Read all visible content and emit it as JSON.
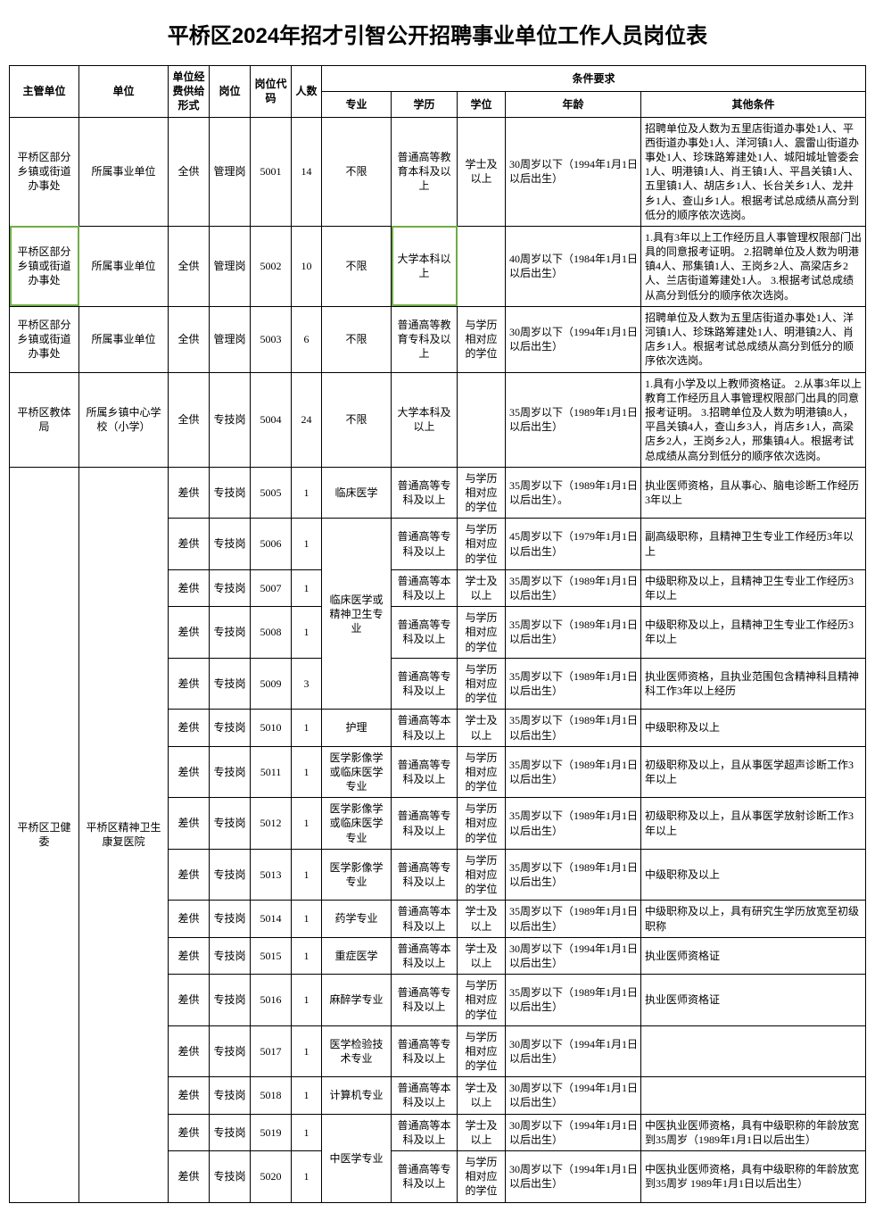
{
  "title": "平桥区2024年招才引智公开招聘事业单位工作人员岗位表",
  "headers": {
    "authority": "主管单位",
    "unit": "单位",
    "funding": "单位经费供给形式",
    "post": "岗位",
    "code": "岗位代码",
    "count": "人数",
    "conditions": "条件要求",
    "major": "专业",
    "education": "学历",
    "degree": "学位",
    "age": "年龄",
    "other": "其他条件"
  },
  "rows": [
    {
      "authority": "平桥区部分乡镇或街道办事处",
      "unit": "所属事业单位",
      "funding": "全供",
      "post": "管理岗",
      "code": "5001",
      "count": "14",
      "major": "不限",
      "education": "普通高等教育本科及以上",
      "degree": "学士及以上",
      "age": "30周岁以下（1994年1月1日以后出生）",
      "other": "招聘单位及人数为五里店街道办事处1人、平西街道办事处1人、洋河镇1人、震雷山街道办事处1人、珍珠路筹建处1人、城阳城址管委会1人、明港镇1人、肖王镇1人、平昌关镇1人、五里镇1人、胡店乡1人、长台关乡1人、龙井乡1人、查山乡1人。根据考试总成绩从高分到低分的顺序依次选岗。"
    },
    {
      "authority": "平桥区部分乡镇或街道办事处",
      "unit": "所属事业单位",
      "funding": "全供",
      "post": "管理岗",
      "code": "5002",
      "count": "10",
      "major": "不限",
      "education": "大学本科以上",
      "degree": "",
      "age": "40周岁以下（1984年1月1日以后出生）",
      "other": "1.具有3年以上工作经历且人事管理权限部门出具的同意报考证明。\n2.招聘单位及人数为明港镇4人、邢集镇1人、王岗乡2人、高梁店乡2人、兰店街道筹建处1人。\n3.根据考试总成绩从高分到低分的顺序依次选岗。"
    },
    {
      "authority": "平桥区部分乡镇或街道办事处",
      "unit": "所属事业单位",
      "funding": "全供",
      "post": "管理岗",
      "code": "5003",
      "count": "6",
      "major": "不限",
      "education": "普通高等教育专科及以上",
      "degree": "与学历相对应的学位",
      "age": "30周岁以下（1994年1月1日以后出生）",
      "other": "招聘单位及人数为五里店街道办事处1人、洋河镇1人、珍珠路筹建处1人、明港镇2人、肖店乡1人。根据考试总成绩从高分到低分的顺序依次选岗。"
    },
    {
      "authority": "平桥区教体局",
      "unit": "所属乡镇中心学校（小学）",
      "funding": "全供",
      "post": "专技岗",
      "code": "5004",
      "count": "24",
      "major": "不限",
      "education": "大学本科及以上",
      "degree": "",
      "age": "35周岁以下（1989年1月1日以后出生）",
      "other": "1.具有小学及以上教师资格证。\n2.从事3年以上教育工作经历且人事管理权限部门出具的同意报考证明。\n3.招聘单位及人数为明港镇8人，平昌关镇4人，查山乡3人，肖店乡1人，高梁店乡2人，王岗乡2人，邢集镇4人。根据考试总成绩从高分到低分的顺序依次选岗。"
    },
    {
      "funding": "差供",
      "post": "专技岗",
      "code": "5005",
      "count": "1",
      "major": "临床医学",
      "education": "普通高等专科及以上",
      "degree": "与学历相对应的学位",
      "age": "35周岁以下（1989年1月1日以后出生）。",
      "other": "执业医师资格，且从事心、脑电诊断工作经历3年以上"
    },
    {
      "funding": "差供",
      "post": "专技岗",
      "code": "5006",
      "count": "1",
      "education": "普通高等专科及以上",
      "degree": "与学历相对应的学位",
      "age": "45周岁以下（1979年1月1日以后出生）",
      "other": "副高级职称，且精神卫生专业工作经历3年以上"
    },
    {
      "funding": "差供",
      "post": "专技岗",
      "code": "5007",
      "count": "1",
      "education": "普通高等本科及以上",
      "degree": "学士及以上",
      "age": "35周岁以下（1989年1月1日以后出生）",
      "other": "中级职称及以上，且精神卫生专业工作经历3年以上"
    },
    {
      "funding": "差供",
      "post": "专技岗",
      "code": "5008",
      "count": "1",
      "education": "普通高等专科及以上",
      "degree": "与学历相对应的学位",
      "age": "35周岁以下（1989年1月1日以后出生）",
      "other": "中级职称及以上，且精神卫生专业工作经历3年以上"
    },
    {
      "funding": "差供",
      "post": "专技岗",
      "code": "5009",
      "count": "3",
      "education": "普通高等专科及以上",
      "degree": "与学历相对应的学位",
      "age": "35周岁以下（1989年1月1日以后出生）",
      "other": "执业医师资格，且执业范围包含精神科且精神科工作3年以上经历"
    },
    {
      "funding": "差供",
      "post": "专技岗",
      "code": "5010",
      "count": "1",
      "major": "护理",
      "education": "普通高等本科及以上",
      "degree": "学士及以上",
      "age": "35周岁以下（1989年1月1日以后出生）",
      "other": "中级职称及以上"
    },
    {
      "funding": "差供",
      "post": "专技岗",
      "code": "5011",
      "count": "1",
      "major": "医学影像学或临床医学专业",
      "education": "普通高等专科及以上",
      "degree": "与学历相对应的学位",
      "age": "35周岁以下（1989年1月1日以后出生）",
      "other": "初级职称及以上，且从事医学超声诊断工作3年以上"
    },
    {
      "funding": "差供",
      "post": "专技岗",
      "code": "5012",
      "count": "1",
      "major": "医学影像学或临床医学专业",
      "education": "普通高等专科及以上",
      "degree": "与学历相对应的学位",
      "age": "35周岁以下（1989年1月1日以后出生）",
      "other": "初级职称及以上，且从事医学放射诊断工作3年以上"
    },
    {
      "funding": "差供",
      "post": "专技岗",
      "code": "5013",
      "count": "1",
      "major": "医学影像学专业",
      "education": "普通高等专科及以上",
      "degree": "与学历相对应的学位",
      "age": "35周岁以下（1989年1月1日以后出生）",
      "other": "中级职称及以上"
    },
    {
      "funding": "差供",
      "post": "专技岗",
      "code": "5014",
      "count": "1",
      "major": "药学专业",
      "education": "普通高等本科及以上",
      "degree": "学士及以上",
      "age": "35周岁以下（1989年1月1日以后出生）",
      "other": "中级职称及以上，具有研究生学历放宽至初级职称"
    },
    {
      "funding": "差供",
      "post": "专技岗",
      "code": "5015",
      "count": "1",
      "major": "重症医学",
      "education": "普通高等本科及以上",
      "degree": "学士及以上",
      "age": "30周岁以下（1994年1月1日以后出生）",
      "other": "执业医师资格证"
    },
    {
      "funding": "差供",
      "post": "专技岗",
      "code": "5016",
      "count": "1",
      "major": "麻醉学专业",
      "education": "普通高等专科及以上",
      "degree": "与学历相对应的学位",
      "age": "35周岁以下（1989年1月1日以后出生）",
      "other": "执业医师资格证"
    },
    {
      "funding": "差供",
      "post": "专技岗",
      "code": "5017",
      "count": "1",
      "major": "医学检验技术专业",
      "education": "普通高等专科及以上",
      "degree": "与学历相对应的学位",
      "age": "30周岁以下（1994年1月1日以后出生）",
      "other": ""
    },
    {
      "funding": "差供",
      "post": "专技岗",
      "code": "5018",
      "count": "1",
      "major": "计算机专业",
      "education": "普通高等本科及以上",
      "degree": "学士及以上",
      "age": "30周岁以下（1994年1月1日以后出生）",
      "other": ""
    },
    {
      "funding": "差供",
      "post": "专技岗",
      "code": "5019",
      "count": "1",
      "education": "普通高等本科及以上",
      "degree": "学士及以上",
      "age": "30周岁以下（1994年1月1日以后出生）",
      "other": "中医执业医师资格，具有中级职称的年龄放宽到35周岁（1989年1月1日以后出生）"
    },
    {
      "funding": "差供",
      "post": "专技岗",
      "code": "5020",
      "count": "1",
      "education": "普通高等专科及以上",
      "degree": "与学历相对应的学位",
      "age": "30周岁以下（1994年1月1日以后出生）",
      "other": "中医执业医师资格，具有中级职称的年龄放宽到35周岁 1989年1月1日以后出生）"
    }
  ],
  "merged": {
    "health_authority": "平桥区卫健委",
    "health_unit": "平桥区精神卫生康复医院",
    "major_group_b": "临床医学或精神卫生专业",
    "major_group_c": "中医学专业"
  }
}
